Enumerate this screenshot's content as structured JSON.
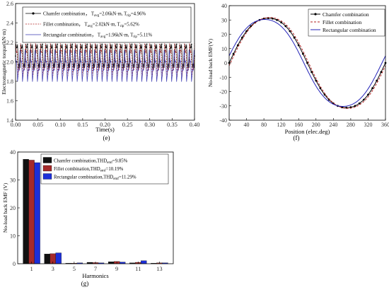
{
  "chart_data": [
    {
      "id": "e",
      "panel_label": "(e)",
      "type": "line",
      "xlabel": "Time(s)",
      "ylabel": "Electromagnetic torque(kN·m)",
      "xlim": [
        0.0,
        0.4
      ],
      "ylim": [
        1.4,
        2.6
      ],
      "xticks": [
        "0.00",
        "0.05",
        "0.10",
        "0.15",
        "0.20",
        "0.25",
        "0.30",
        "0.35",
        "0.40"
      ],
      "yticks": [
        "1.4",
        "1.6",
        "1.8",
        "2.0",
        "2.2",
        "2.4",
        "2.6"
      ],
      "legend_position": "top",
      "series": [
        {
          "name": "Chamfer combination，",
          "avg_label": "T",
          "avg_sub": "avg",
          "avg_value": "=2.06kN·m,",
          "rip_label": "T",
          "rip_sub": "rip",
          "rip_value": "=4.96%",
          "color": "#000000",
          "dash": "",
          "marker": "dot",
          "mean": 2.06,
          "amplitude": 0.12
        },
        {
          "name": "Fillet combination，",
          "avg_label": "T",
          "avg_sub": "avg",
          "avg_value": "=2.02kN·m,",
          "rip_label": "T",
          "rip_sub": "rip",
          "rip_value": "=5.62%",
          "color": "#b22222",
          "dash": "2,1.5",
          "marker": "none",
          "mean": 2.02,
          "amplitude": 0.14
        },
        {
          "name": "Rectangular combination，",
          "avg_label": "T",
          "avg_sub": "avg",
          "avg_value": "=1.96kN·m,",
          "rip_label": "T",
          "rip_sub": "rip",
          "rip_value": "=5.11%",
          "color": "#3a3ab0",
          "dash": "",
          "marker": "none",
          "mean": 1.96,
          "amplitude": 0.12
        }
      ],
      "ripple_periods": 36
    },
    {
      "id": "f",
      "panel_label": "(f)",
      "type": "line",
      "xlabel": "Position (elec.deg)",
      "ylabel": "No-load back EMF(V)",
      "xlim": [
        0,
        360
      ],
      "ylim": [
        -40,
        40
      ],
      "xticks": [
        "0",
        "40",
        "80",
        "120",
        "160",
        "200",
        "240",
        "280",
        "320",
        "360"
      ],
      "yticks": [
        "-40",
        "-30",
        "-20",
        "-10",
        "0",
        "10",
        "20",
        "30",
        "40"
      ],
      "legend_position": "top-right",
      "series": [
        {
          "name": "Chamfer combination",
          "color": "#000000",
          "dash": "",
          "marker": "dot",
          "peak": 34,
          "phase_deg": 0
        },
        {
          "name": "Fillet combination",
          "color": "#b22222",
          "dash": "3,2",
          "marker": "none",
          "peak": 34.5,
          "phase_deg": 3
        },
        {
          "name": "Rectangular combination",
          "color": "#2424b8",
          "dash": "",
          "marker": "none",
          "peak": 33,
          "phase_deg": -8
        }
      ]
    },
    {
      "id": "g",
      "panel_label": "(g)",
      "type": "bar",
      "xlabel": "Harmonics",
      "ylabel": "No-load back EMF (V)",
      "ylim": [
        0,
        40
      ],
      "yticks": [
        "0",
        "10",
        "20",
        "30",
        "40"
      ],
      "categories": [
        "1",
        "3",
        "5",
        "7",
        "9",
        "11",
        "13"
      ],
      "legend_position": "top-right",
      "series": [
        {
          "name": "Chamfer combination,THD",
          "thd_sub": "emf",
          "thd_value": "=9.85%",
          "color": "#111111",
          "values": [
            37.4,
            3.5,
            0.2,
            0.5,
            0.7,
            0.3,
            0.2
          ]
        },
        {
          "name": "Fillet combination,THD",
          "thd_sub": "emf",
          "thd_value": "=10.19%",
          "color": "#a52a2a",
          "values": [
            37.1,
            3.6,
            0.2,
            0.4,
            0.8,
            0.5,
            0.3
          ]
        },
        {
          "name": "Rectangular combination,THD",
          "thd_sub": "emf",
          "thd_value": "=11.29%",
          "color": "#1c2fd8",
          "values": [
            36.2,
            3.9,
            0.3,
            0.3,
            0.6,
            1.1,
            0.3
          ]
        }
      ]
    }
  ]
}
